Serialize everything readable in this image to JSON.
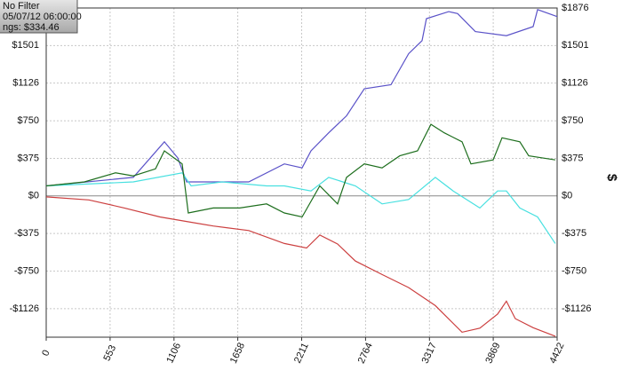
{
  "chart_data": {
    "type": "line",
    "annotations": [
      "No Filter",
      "05/07/12 06:00:00",
      "ngs: $334.46"
    ],
    "ylabel": "$",
    "xlim": [
      0,
      4422
    ],
    "ylim": [
      -1410,
      1876
    ],
    "xticks": [
      0,
      553,
      1106,
      1658,
      2211,
      2764,
      3317,
      3869,
      4422
    ],
    "yticks": [
      {
        "value": -1126,
        "label": "-$1126"
      },
      {
        "value": -750,
        "label": "-$750"
      },
      {
        "value": -375,
        "label": "-$375"
      },
      {
        "value": 0,
        "label": "$0"
      },
      {
        "value": 375,
        "label": "$375"
      },
      {
        "value": 750,
        "label": "$750"
      },
      {
        "value": 1126,
        "label": "$1126"
      },
      {
        "value": 1501,
        "label": "$1501"
      },
      {
        "value": 1876,
        "label": "$1876"
      }
    ],
    "grid": true,
    "series": [
      {
        "color": "#5a52c8",
        "x": [
          0,
          754,
          1023,
          1138,
          1215,
          1446,
          1753,
          2061,
          2215,
          2292,
          2445,
          2599,
          2753,
          2984,
          3137,
          3253,
          3291,
          3484,
          3561,
          3714,
          3983,
          4214,
          4253,
          4422
        ],
        "values": [
          100,
          185,
          540,
          380,
          140,
          140,
          140,
          320,
          280,
          450,
          630,
          800,
          1070,
          1110,
          1420,
          1550,
          1770,
          1840,
          1820,
          1640,
          1600,
          1690,
          1860,
          1790
        ]
      },
      {
        "color": "#48e0e0",
        "x": [
          0,
          754,
          1177,
          1254,
          1523,
          1907,
          2061,
          2292,
          2445,
          2676,
          2907,
          3137,
          3368,
          3522,
          3753,
          3907,
          3983,
          4099,
          4253,
          4406
        ],
        "values": [
          100,
          140,
          230,
          100,
          140,
          100,
          100,
          50,
          185,
          100,
          -80,
          -35,
          185,
          50,
          -120,
          50,
          50,
          -120,
          -210,
          -475
        ]
      },
      {
        "color": "#cc4040",
        "x": [
          0,
          369,
          677,
          984,
          1215,
          1446,
          1753,
          2061,
          2253,
          2368,
          2522,
          2676,
          2907,
          3137,
          3368,
          3599,
          3753,
          3907,
          3983,
          4060,
          4214,
          4406
        ],
        "values": [
          -10,
          -40,
          -120,
          -210,
          -255,
          -300,
          -345,
          -475,
          -520,
          -390,
          -480,
          -650,
          -785,
          -915,
          -1095,
          -1360,
          -1320,
          -1180,
          -1050,
          -1225,
          -1315,
          -1400
        ]
      },
      {
        "color": "#1d6e1d",
        "x": [
          0,
          331,
          600,
          754,
          946,
          1023,
          1177,
          1230,
          1446,
          1676,
          1907,
          2061,
          2215,
          2368,
          2522,
          2599,
          2753,
          2907,
          3060,
          3214,
          3330,
          3445,
          3599,
          3676,
          3868,
          3945,
          4099,
          4176,
          4406
        ],
        "values": [
          100,
          140,
          230,
          200,
          270,
          450,
          320,
          -170,
          -120,
          -120,
          -80,
          -170,
          -210,
          100,
          -80,
          185,
          320,
          280,
          400,
          450,
          715,
          630,
          540,
          320,
          360,
          580,
          540,
          400,
          360
        ]
      }
    ]
  }
}
